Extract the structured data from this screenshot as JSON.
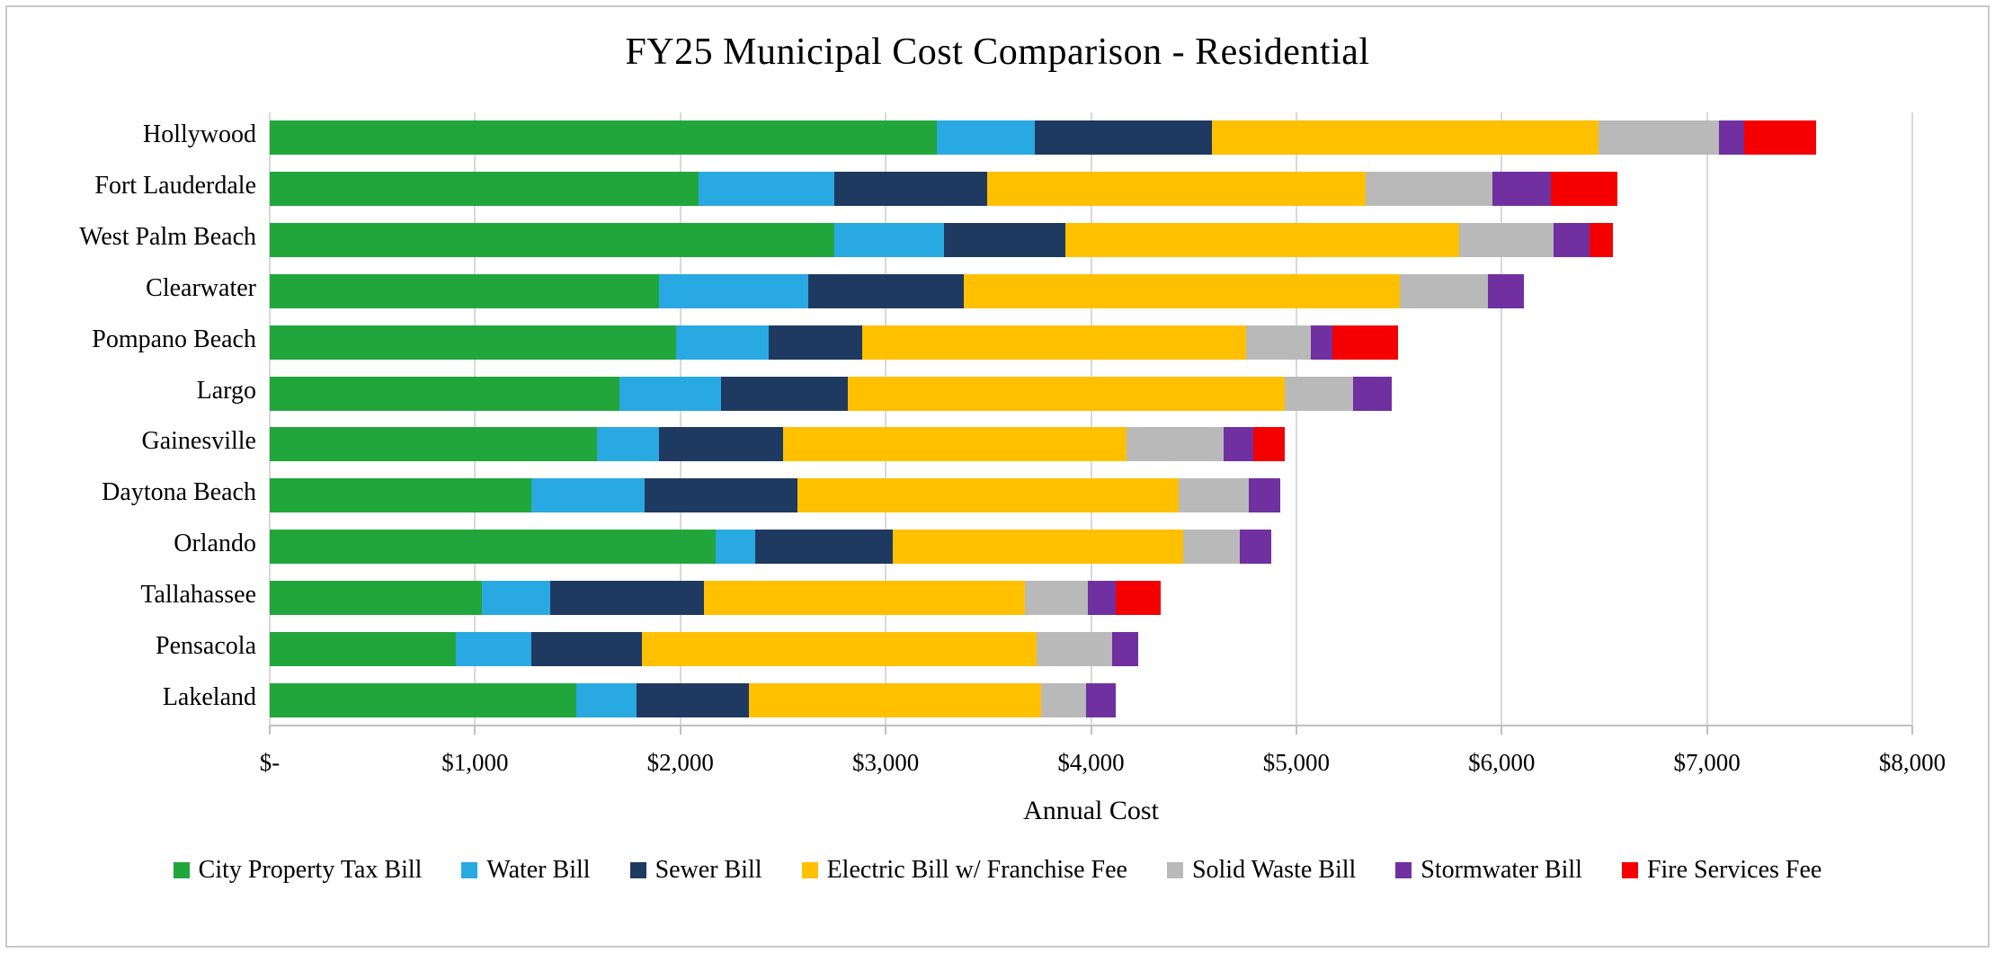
{
  "chart_data": {
    "type": "bar",
    "orientation": "horizontal-stacked",
    "title": "FY25 Municipal Cost Comparison - Residential",
    "xlabel": "Annual Cost",
    "xlim": [
      0,
      8000
    ],
    "x_ticks": [
      {
        "value": 0,
        "label": "$-"
      },
      {
        "value": 1000,
        "label": "$1,000"
      },
      {
        "value": 2000,
        "label": "$2,000"
      },
      {
        "value": 3000,
        "label": "$3,000"
      },
      {
        "value": 4000,
        "label": "$4,000"
      },
      {
        "value": 5000,
        "label": "$5,000"
      },
      {
        "value": 6000,
        "label": "$6,000"
      },
      {
        "value": 7000,
        "label": "$7,000"
      },
      {
        "value": 8000,
        "label": "$8,000"
      }
    ],
    "grid": true,
    "legend_position": "bottom",
    "categories": [
      "Hollywood",
      "Fort Lauderdale",
      "West Palm Beach",
      "Clearwater",
      "Pompano Beach",
      "Largo",
      "Gainesville",
      "Daytona Beach",
      "Orlando",
      "Tallahassee",
      "Pensacola",
      "Lakeland"
    ],
    "series": [
      {
        "name": "City Property Tax Bill",
        "color": "#21a63c",
        "values": [
          3250,
          2090,
          2750,
          1895,
          1980,
          1705,
          1595,
          1275,
          2170,
          1035,
          905,
          1495
        ]
      },
      {
        "name": "Water Bill",
        "color": "#29a9e1",
        "values": [
          475,
          660,
          535,
          730,
          450,
          495,
          300,
          550,
          195,
          330,
          370,
          290
        ]
      },
      {
        "name": "Sewer Bill",
        "color": "#1f3a60",
        "values": [
          865,
          745,
          590,
          755,
          455,
          615,
          605,
          745,
          670,
          750,
          540,
          550
        ]
      },
      {
        "name": "Electric Bill w/ Franchise Fee",
        "color": "#ffc000",
        "values": [
          1880,
          1845,
          1920,
          2125,
          1870,
          2130,
          1675,
          1855,
          1415,
          1565,
          1920,
          1420
        ]
      },
      {
        "name": "Solid Waste Bill",
        "color": "#b9b9b9",
        "values": [
          590,
          615,
          460,
          430,
          315,
          330,
          470,
          345,
          275,
          305,
          370,
          220
        ]
      },
      {
        "name": "Stormwater Bill",
        "color": "#7030a0",
        "values": [
          120,
          285,
          175,
          175,
          105,
          190,
          145,
          150,
          155,
          135,
          125,
          145
        ]
      },
      {
        "name": "Fire Services Fee",
        "color": "#f40000",
        "values": [
          350,
          325,
          110,
          0,
          320,
          0,
          155,
          0,
          0,
          220,
          0,
          0
        ]
      }
    ],
    "totals": [
      7530,
      6565,
      6540,
      6110,
      5495,
      5465,
      4945,
      4920,
      4880,
      4340,
      4230,
      4120
    ]
  }
}
